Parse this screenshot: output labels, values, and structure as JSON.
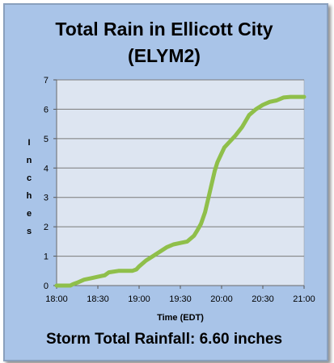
{
  "title_line1": "Total Rain in Ellicott City",
  "title_line2": "(ELYM2)",
  "footer": "Storm Total Rainfall: 6.60 inches",
  "colors": {
    "background": "#a9c4e8",
    "plot_area": "#dde5f1",
    "line": "#8fbf4a",
    "gridline": "#7a7a7a"
  },
  "chart_data": {
    "type": "line",
    "title": "Total Rain in Ellicott City (ELYM2)",
    "xlabel": "Time (EDT)",
    "ylabel": "Inches",
    "xlim": [
      "18:00",
      "21:00"
    ],
    "ylim": [
      0,
      7
    ],
    "x_ticks": [
      "18:00",
      "18:30",
      "19:00",
      "19:30",
      "20:00",
      "20:30",
      "21:00"
    ],
    "y_ticks": [
      0,
      1,
      2,
      3,
      4,
      5,
      6,
      7
    ],
    "grid": true,
    "series": [
      {
        "x": [
          "18:00",
          "18:10",
          "18:12",
          "18:15",
          "18:20",
          "18:25",
          "18:30",
          "18:35",
          "18:38",
          "18:45",
          "18:55",
          "18:58",
          "19:00",
          "19:05",
          "19:10",
          "19:15",
          "19:20",
          "19:25",
          "19:30",
          "19:35",
          "19:40",
          "19:42",
          "19:45",
          "19:48",
          "19:50",
          "19:52",
          "19:55",
          "19:57",
          "20:00",
          "20:02",
          "20:05",
          "20:07",
          "20:10",
          "20:15",
          "20:20",
          "20:25",
          "20:30",
          "20:35",
          "20:40",
          "20:45",
          "20:50",
          "20:55",
          "21:00"
        ],
        "values": [
          0,
          0,
          0.05,
          0.1,
          0.2,
          0.25,
          0.3,
          0.35,
          0.45,
          0.5,
          0.5,
          0.55,
          0.65,
          0.85,
          1.0,
          1.15,
          1.3,
          1.4,
          1.45,
          1.5,
          1.7,
          1.85,
          2.1,
          2.5,
          2.9,
          3.3,
          3.9,
          4.2,
          4.5,
          4.7,
          4.85,
          4.95,
          5.1,
          5.4,
          5.8,
          6.0,
          6.15,
          6.25,
          6.3,
          6.4,
          6.42,
          6.42,
          6.42
        ]
      }
    ]
  }
}
